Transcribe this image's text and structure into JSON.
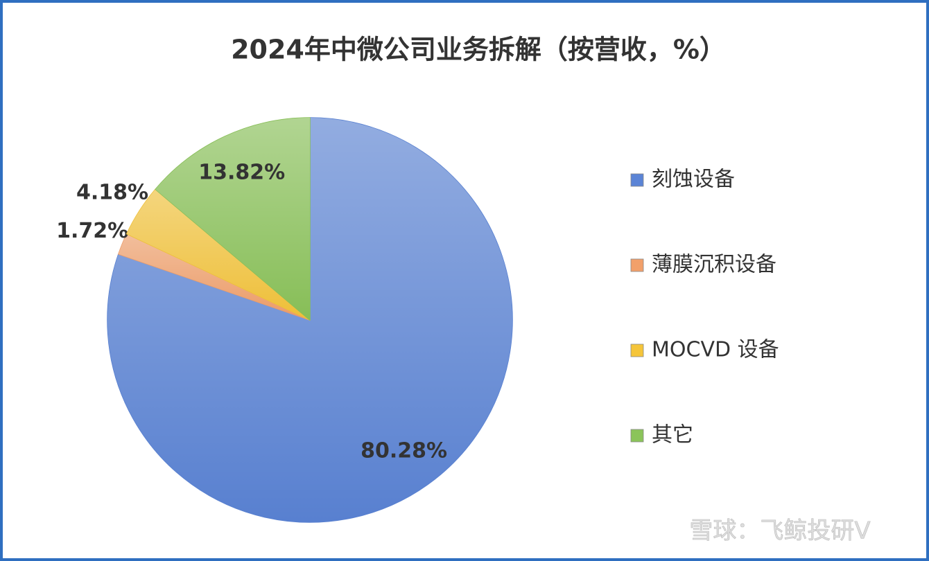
{
  "chart_data": {
    "type": "pie",
    "title": "2024年中微公司业务拆解（按营收，%）",
    "categories": [
      "刻蚀设备",
      "薄膜沉积设备",
      "MOCVD 设备",
      "其它"
    ],
    "values": [
      80.28,
      1.72,
      4.18,
      13.82
    ],
    "value_labels": [
      "80.28%",
      "1.72%",
      "4.18%",
      "13.82%"
    ],
    "colors": [
      "#5b84d6",
      "#f2a06a",
      "#f5c53a",
      "#8bc45a"
    ],
    "legend": "right"
  },
  "watermark": "雪球：飞鲸投研V"
}
